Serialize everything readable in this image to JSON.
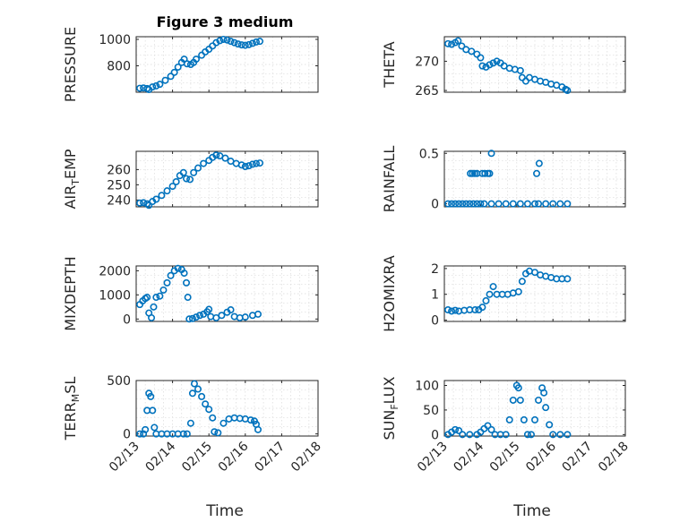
{
  "figure_title": "Figure 3 medium",
  "marker_color": "#0072BD",
  "chart_data": [
    {
      "type": "scatter",
      "name": "PRESSURE",
      "ylabel": "PRESSURE",
      "ylabel_sub": "",
      "ylabel_tail": "",
      "ylim": [
        600,
        1020
      ],
      "yticks": [
        800,
        1000
      ],
      "xticks": [
        "02/13",
        "02/14",
        "02/15",
        "02/16",
        "02/17",
        "02/18"
      ],
      "grid": true,
      "show_xticklabels": false,
      "points": [
        [
          0.1,
          630
        ],
        [
          0.2,
          632
        ],
        [
          0.3,
          628
        ],
        [
          0.35,
          620
        ],
        [
          0.45,
          640
        ],
        [
          0.55,
          648
        ],
        [
          0.65,
          660
        ],
        [
          0.8,
          690
        ],
        [
          0.95,
          720
        ],
        [
          1.05,
          750
        ],
        [
          1.15,
          790
        ],
        [
          1.25,
          825
        ],
        [
          1.32,
          850
        ],
        [
          1.4,
          815
        ],
        [
          1.5,
          810
        ],
        [
          1.58,
          825
        ],
        [
          1.65,
          850
        ],
        [
          1.8,
          880
        ],
        [
          1.9,
          905
        ],
        [
          2.0,
          925
        ],
        [
          2.1,
          950
        ],
        [
          2.2,
          975
        ],
        [
          2.3,
          990
        ],
        [
          2.4,
          1000
        ],
        [
          2.5,
          995
        ],
        [
          2.6,
          985
        ],
        [
          2.7,
          975
        ],
        [
          2.8,
          965
        ],
        [
          2.9,
          958
        ],
        [
          3.0,
          955
        ],
        [
          3.1,
          960
        ],
        [
          3.2,
          970
        ],
        [
          3.3,
          980
        ],
        [
          3.4,
          985
        ]
      ]
    },
    {
      "type": "scatter",
      "name": "THETA",
      "ylabel": "THETA",
      "ylabel_sub": "",
      "ylabel_tail": "",
      "ylim": [
        264.7,
        274.2
      ],
      "yticks": [
        265,
        270
      ],
      "xticks": [
        "02/13",
        "02/14",
        "02/15",
        "02/16",
        "02/17",
        "02/18"
      ],
      "grid": true,
      "show_xticklabels": false,
      "points": [
        [
          0.1,
          273
        ],
        [
          0.2,
          272.9
        ],
        [
          0.3,
          273.2
        ],
        [
          0.38,
          273.5
        ],
        [
          0.48,
          272.6
        ],
        [
          0.6,
          272
        ],
        [
          0.75,
          271.7
        ],
        [
          0.9,
          271.2
        ],
        [
          1.0,
          270.6
        ],
        [
          1.05,
          269.2
        ],
        [
          1.15,
          269
        ],
        [
          1.25,
          269.4
        ],
        [
          1.35,
          269.7
        ],
        [
          1.45,
          270
        ],
        [
          1.55,
          269.7
        ],
        [
          1.65,
          269.2
        ],
        [
          1.8,
          268.8
        ],
        [
          1.95,
          268.6
        ],
        [
          2.1,
          268.4
        ],
        [
          2.15,
          267.2
        ],
        [
          2.25,
          266.6
        ],
        [
          2.35,
          267.2
        ],
        [
          2.5,
          266.9
        ],
        [
          2.65,
          266.6
        ],
        [
          2.8,
          266.4
        ],
        [
          2.95,
          266.1
        ],
        [
          3.1,
          265.9
        ],
        [
          3.25,
          265.6
        ],
        [
          3.35,
          265.2
        ],
        [
          3.4,
          265
        ]
      ]
    },
    {
      "type": "scatter",
      "name": "AIR_TEMP",
      "ylabel": "AIR",
      "ylabel_sub": "T",
      "ylabel_tail": "EMP",
      "ylim": [
        235.5,
        272
      ],
      "yticks": [
        240,
        250,
        260
      ],
      "xticks": [
        "02/13",
        "02/14",
        "02/15",
        "02/16",
        "02/17",
        "02/18"
      ],
      "grid": true,
      "show_xticklabels": false,
      "points": [
        [
          0.1,
          238
        ],
        [
          0.2,
          238.2
        ],
        [
          0.3,
          237.5
        ],
        [
          0.35,
          236.5
        ],
        [
          0.45,
          239
        ],
        [
          0.55,
          240.5
        ],
        [
          0.7,
          243
        ],
        [
          0.85,
          246
        ],
        [
          1.0,
          249
        ],
        [
          1.1,
          252
        ],
        [
          1.2,
          256
        ],
        [
          1.3,
          258
        ],
        [
          1.38,
          254
        ],
        [
          1.48,
          253.5
        ],
        [
          1.58,
          258
        ],
        [
          1.7,
          261
        ],
        [
          1.85,
          264
        ],
        [
          2.0,
          266
        ],
        [
          2.1,
          268
        ],
        [
          2.2,
          269.5
        ],
        [
          2.3,
          269
        ],
        [
          2.45,
          267.5
        ],
        [
          2.6,
          265.5
        ],
        [
          2.75,
          264
        ],
        [
          2.9,
          263
        ],
        [
          3.0,
          262
        ],
        [
          3.1,
          262.5
        ],
        [
          3.2,
          263.5
        ],
        [
          3.3,
          264
        ],
        [
          3.4,
          264.3
        ]
      ]
    },
    {
      "type": "scatter",
      "name": "RAINFALL",
      "ylabel": "RAINFALL",
      "ylabel_sub": "",
      "ylabel_tail": "",
      "ylim": [
        -0.03,
        0.52
      ],
      "yticks": [
        0,
        0.5
      ],
      "xticks": [
        "02/13",
        "02/14",
        "02/15",
        "02/16",
        "02/17",
        "02/18"
      ],
      "grid": true,
      "show_xticklabels": false,
      "points": [
        [
          0.1,
          0
        ],
        [
          0.2,
          0
        ],
        [
          0.3,
          0
        ],
        [
          0.4,
          0
        ],
        [
          0.5,
          0
        ],
        [
          0.6,
          0
        ],
        [
          0.7,
          0
        ],
        [
          0.72,
          0.3
        ],
        [
          0.78,
          0.3
        ],
        [
          0.84,
          0.3
        ],
        [
          0.9,
          0.3
        ],
        [
          0.8,
          0
        ],
        [
          0.9,
          0
        ],
        [
          1.0,
          0
        ],
        [
          1.05,
          0.3
        ],
        [
          1.12,
          0.3
        ],
        [
          1.2,
          0.3
        ],
        [
          1.25,
          0.3
        ],
        [
          1.3,
          0.5
        ],
        [
          1.1,
          0
        ],
        [
          1.3,
          0
        ],
        [
          1.5,
          0
        ],
        [
          1.7,
          0
        ],
        [
          1.9,
          0
        ],
        [
          2.1,
          0
        ],
        [
          2.3,
          0
        ],
        [
          2.5,
          0
        ],
        [
          2.55,
          0.3
        ],
        [
          2.62,
          0.4
        ],
        [
          2.6,
          0
        ],
        [
          2.8,
          0
        ],
        [
          3.0,
          0
        ],
        [
          3.2,
          0
        ],
        [
          3.4,
          0
        ]
      ]
    },
    {
      "type": "scatter",
      "name": "MIXDEPTH",
      "ylabel": "MIXDEPTH",
      "ylabel_sub": "",
      "ylabel_tail": "",
      "ylim": [
        -100,
        2200
      ],
      "yticks": [
        0,
        1000,
        2000
      ],
      "xticks": [
        "02/13",
        "02/14",
        "02/15",
        "02/16",
        "02/17",
        "02/18"
      ],
      "grid": true,
      "show_xticklabels": false,
      "points": [
        [
          0.1,
          600
        ],
        [
          0.18,
          750
        ],
        [
          0.25,
          850
        ],
        [
          0.3,
          900
        ],
        [
          0.35,
          250
        ],
        [
          0.42,
          50
        ],
        [
          0.48,
          500
        ],
        [
          0.55,
          900
        ],
        [
          0.65,
          950
        ],
        [
          0.75,
          1200
        ],
        [
          0.85,
          1500
        ],
        [
          0.95,
          1800
        ],
        [
          1.05,
          2000
        ],
        [
          1.15,
          2100
        ],
        [
          1.25,
          2050
        ],
        [
          1.32,
          1900
        ],
        [
          1.38,
          1500
        ],
        [
          1.42,
          900
        ],
        [
          1.46,
          0
        ],
        [
          1.55,
          20
        ],
        [
          1.65,
          80
        ],
        [
          1.75,
          150
        ],
        [
          1.85,
          200
        ],
        [
          1.95,
          300
        ],
        [
          2.0,
          400
        ],
        [
          2.05,
          100
        ],
        [
          2.2,
          50
        ],
        [
          2.35,
          150
        ],
        [
          2.5,
          280
        ],
        [
          2.6,
          380
        ],
        [
          2.7,
          100
        ],
        [
          2.85,
          50
        ],
        [
          3.0,
          80
        ],
        [
          3.2,
          150
        ],
        [
          3.35,
          200
        ]
      ]
    },
    {
      "type": "scatter",
      "name": "H2OMIXRA",
      "ylabel": "H2OMIXRA",
      "ylabel_sub": "",
      "ylabel_tail": "",
      "ylim": [
        -0.05,
        2.1
      ],
      "yticks": [
        0,
        1,
        2
      ],
      "xticks": [
        "02/13",
        "02/14",
        "02/15",
        "02/16",
        "02/17",
        "02/18"
      ],
      "grid": true,
      "show_xticklabels": false,
      "points": [
        [
          0.1,
          0.4
        ],
        [
          0.2,
          0.35
        ],
        [
          0.3,
          0.38
        ],
        [
          0.4,
          0.35
        ],
        [
          0.55,
          0.38
        ],
        [
          0.7,
          0.4
        ],
        [
          0.85,
          0.4
        ],
        [
          0.95,
          0.4
        ],
        [
          1.05,
          0.5
        ],
        [
          1.15,
          0.75
        ],
        [
          1.25,
          1.0
        ],
        [
          1.35,
          1.3
        ],
        [
          1.45,
          1.0
        ],
        [
          1.6,
          1.0
        ],
        [
          1.75,
          1.0
        ],
        [
          1.9,
          1.05
        ],
        [
          2.05,
          1.1
        ],
        [
          2.15,
          1.5
        ],
        [
          2.25,
          1.8
        ],
        [
          2.35,
          1.9
        ],
        [
          2.5,
          1.85
        ],
        [
          2.65,
          1.75
        ],
        [
          2.8,
          1.7
        ],
        [
          2.95,
          1.65
        ],
        [
          3.1,
          1.6
        ],
        [
          3.25,
          1.6
        ],
        [
          3.4,
          1.6
        ]
      ]
    },
    {
      "type": "scatter",
      "name": "TERR_MSL",
      "ylabel": "TERR",
      "ylabel_sub": "M",
      "ylabel_tail": "SL",
      "ylim": [
        -20,
        500
      ],
      "yticks": [
        0,
        500
      ],
      "xticks": [
        "02/13",
        "02/14",
        "02/15",
        "02/16",
        "02/17",
        "02/18"
      ],
      "grid": true,
      "show_xticklabels": true,
      "points": [
        [
          0.1,
          0
        ],
        [
          0.2,
          0
        ],
        [
          0.25,
          40
        ],
        [
          0.3,
          220
        ],
        [
          0.35,
          380
        ],
        [
          0.4,
          350
        ],
        [
          0.45,
          220
        ],
        [
          0.5,
          60
        ],
        [
          0.55,
          0
        ],
        [
          0.7,
          0
        ],
        [
          0.85,
          0
        ],
        [
          1.0,
          0
        ],
        [
          1.15,
          0
        ],
        [
          1.3,
          0
        ],
        [
          1.4,
          0
        ],
        [
          1.5,
          100
        ],
        [
          1.55,
          380
        ],
        [
          1.6,
          470
        ],
        [
          1.7,
          420
        ],
        [
          1.8,
          350
        ],
        [
          1.9,
          280
        ],
        [
          2.0,
          230
        ],
        [
          2.1,
          150
        ],
        [
          2.15,
          20
        ],
        [
          2.25,
          10
        ],
        [
          2.4,
          100
        ],
        [
          2.55,
          140
        ],
        [
          2.7,
          150
        ],
        [
          2.85,
          145
        ],
        [
          3.0,
          140
        ],
        [
          3.15,
          130
        ],
        [
          3.25,
          120
        ],
        [
          3.3,
          90
        ],
        [
          3.35,
          40
        ]
      ]
    },
    {
      "type": "scatter",
      "name": "SUN_FLUX",
      "ylabel": "SUN",
      "ylabel_sub": "F",
      "ylabel_tail": "LUX",
      "ylim": [
        -3,
        110
      ],
      "yticks": [
        0,
        50,
        100
      ],
      "xticks": [
        "02/13",
        "02/14",
        "02/15",
        "02/16",
        "02/17",
        "02/18"
      ],
      "grid": true,
      "show_xticklabels": true,
      "points": [
        [
          0.1,
          0
        ],
        [
          0.2,
          5
        ],
        [
          0.3,
          10
        ],
        [
          0.4,
          8
        ],
        [
          0.5,
          0
        ],
        [
          0.7,
          0
        ],
        [
          0.9,
          0
        ],
        [
          1.0,
          5
        ],
        [
          1.1,
          12
        ],
        [
          1.2,
          18
        ],
        [
          1.3,
          10
        ],
        [
          1.4,
          0
        ],
        [
          1.55,
          0
        ],
        [
          1.7,
          0
        ],
        [
          1.8,
          30
        ],
        [
          1.9,
          70
        ],
        [
          2.0,
          100
        ],
        [
          2.05,
          95
        ],
        [
          2.1,
          70
        ],
        [
          2.2,
          30
        ],
        [
          2.3,
          0
        ],
        [
          2.4,
          0
        ],
        [
          2.5,
          30
        ],
        [
          2.6,
          70
        ],
        [
          2.7,
          95
        ],
        [
          2.75,
          85
        ],
        [
          2.8,
          55
        ],
        [
          2.9,
          20
        ],
        [
          3.0,
          0
        ],
        [
          3.2,
          0
        ],
        [
          3.4,
          0
        ]
      ]
    }
  ],
  "xlabel": "Time"
}
